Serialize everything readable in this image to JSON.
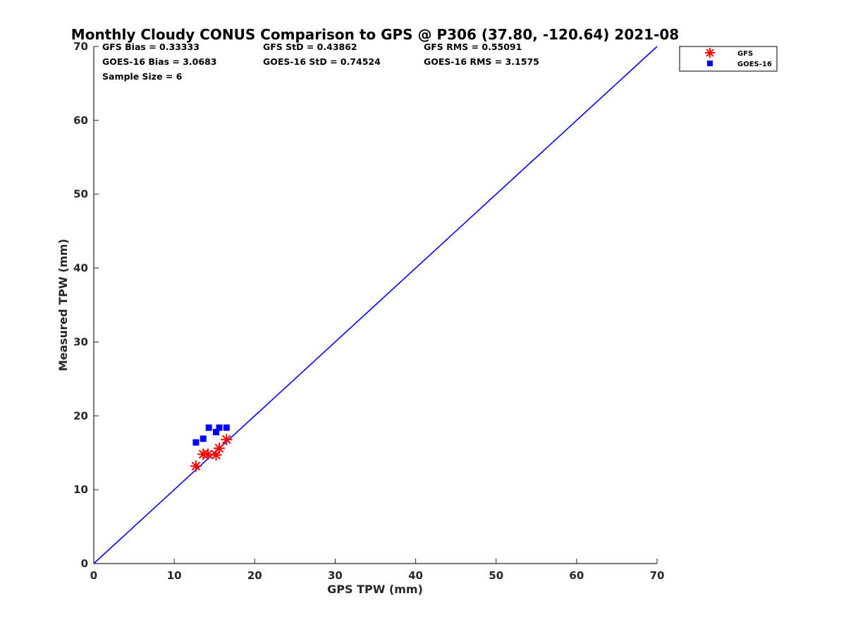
{
  "chart_data": {
    "type": "scatter",
    "title": "Monthly Cloudy CONUS Comparison to GPS @ P306 (37.80, -120.64) 2021-08",
    "xlabel": "GPS TPW (mm)",
    "ylabel": "Measured TPW (mm)",
    "xlim": [
      0,
      70
    ],
    "ylim": [
      0,
      70
    ],
    "xticks": [
      "0",
      "10",
      "20",
      "30",
      "40",
      "50",
      "60",
      "70"
    ],
    "yticks": [
      "0",
      "10",
      "20",
      "30",
      "40",
      "50",
      "60",
      "70"
    ],
    "grid": false,
    "legend_position": "top-right (outside)",
    "stats": {
      "gfs_bias": "GFS Bias = 0.33333",
      "gfs_std": "GFS StD = 0.43862",
      "gfs_rms": "GFS RMS = 0.55091",
      "goes_bias": "GOES-16 Bias = 3.0683",
      "goes_std": "GOES-16 StD = 0.74524",
      "goes_rms": "GOES-16 RMS = 3.1575",
      "sample_size": "Sample Size = 6"
    },
    "series": [
      {
        "name": "GFS",
        "marker": "asterisk",
        "color": "#ff0000",
        "points": [
          [
            12.7,
            13.2
          ],
          [
            13.6,
            14.8
          ],
          [
            14.2,
            14.8
          ],
          [
            15.2,
            14.7
          ],
          [
            15.6,
            15.6
          ],
          [
            16.5,
            16.8
          ]
        ]
      },
      {
        "name": "GOES-16",
        "marker": "square",
        "color": "#0000ff",
        "points": [
          [
            12.7,
            16.4
          ],
          [
            13.6,
            16.9
          ],
          [
            14.3,
            18.4
          ],
          [
            15.2,
            17.8
          ],
          [
            15.6,
            18.4
          ],
          [
            16.5,
            18.4
          ]
        ]
      }
    ],
    "reference_line": {
      "x": [
        0,
        70
      ],
      "y": [
        0,
        70
      ],
      "color": "#0000ff"
    }
  }
}
